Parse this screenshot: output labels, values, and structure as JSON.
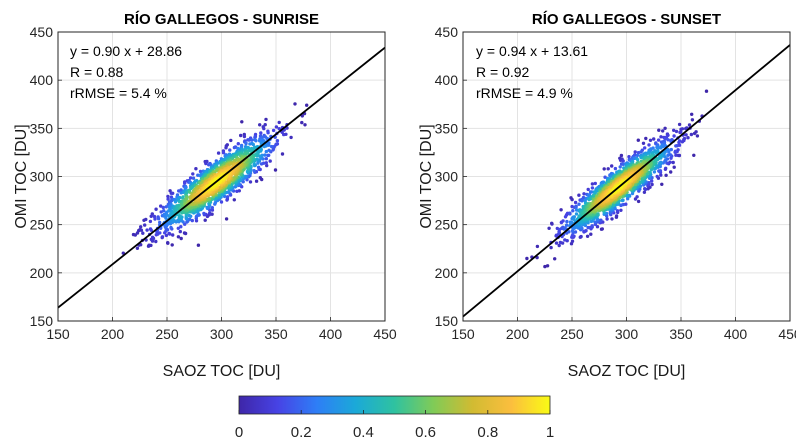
{
  "chart_data": [
    {
      "type": "scatter",
      "title": "RÍO GALLEGOS - SUNRISE",
      "xlabel": "SAOZ TOC [DU]",
      "ylabel": "OMI TOC [DU]",
      "xlim": [
        150,
        450
      ],
      "ylim": [
        150,
        450
      ],
      "xticks": [
        "150",
        "200",
        "250",
        "300",
        "350",
        "400",
        "450"
      ],
      "yticks": [
        "150",
        "200",
        "250",
        "300",
        "350",
        "400",
        "450"
      ],
      "grid": true,
      "annotations": [
        "y = 0.90 x + 28.86",
        "R = 0.88",
        "rRMSE = 5.4 %"
      ],
      "fit": {
        "slope": 0.9,
        "intercept": 28.86
      },
      "point_cloud": {
        "center": [
          295,
          294
        ],
        "spread_major": 36,
        "spread_minor": 9,
        "n": 1400,
        "x_range": [
          200,
          450
        ],
        "y_range": [
          205,
          442
        ]
      }
    },
    {
      "type": "scatter",
      "title": "RÍO GALLEGOS - SUNSET",
      "xlabel": "SAOZ TOC [DU]",
      "ylabel": "OMI TOC [DU]",
      "xlim": [
        150,
        450
      ],
      "ylim": [
        150,
        450
      ],
      "xticks": [
        "150",
        "200",
        "250",
        "300",
        "350",
        "400",
        "450"
      ],
      "yticks": [
        "150",
        "200",
        "250",
        "300",
        "350",
        "400",
        "450"
      ],
      "grid": true,
      "annotations": [
        "y = 0.94 x + 13.61",
        "R = 0.92",
        "rRMSE = 4.9 %"
      ],
      "fit": {
        "slope": 0.94,
        "intercept": 13.61
      },
      "point_cloud": {
        "center": [
          293,
          289
        ],
        "spread_major": 35,
        "spread_minor": 8,
        "n": 1400,
        "x_range": [
          195,
          420
        ],
        "y_range": [
          182,
          435
        ]
      }
    }
  ],
  "colorbar": {
    "ticks": [
      "0",
      "0.2",
      "0.4",
      "0.6",
      "0.8",
      "1"
    ],
    "colormap": [
      "#3e26a8",
      "#4743e5",
      "#2e7ef6",
      "#1ba9d8",
      "#2fc2a0",
      "#80cb57",
      "#d1bb32",
      "#fbbe3e",
      "#f9fb15"
    ]
  }
}
